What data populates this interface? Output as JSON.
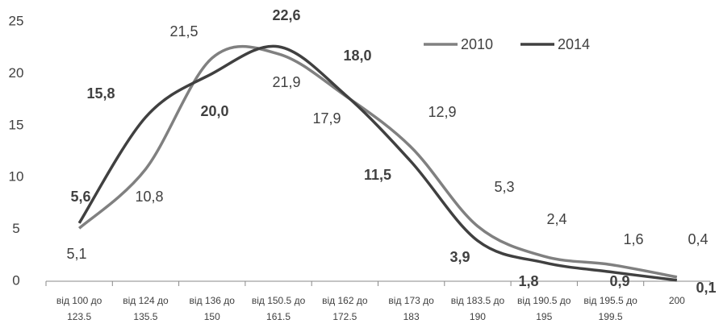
{
  "chart_data": {
    "type": "line",
    "categories": [
      "від 100 до 123.5",
      "від 124 до 135.5",
      "від 136 до 150",
      "від 150.5 до 161.5",
      "від 162 до 172.5",
      "від 173 до 183",
      "від 183.5 до 190",
      "від 190.5 до 195",
      "від 195.5 до 199.5",
      "200"
    ],
    "series": [
      {
        "name": "2010",
        "color": "#808080",
        "values": [
          5.1,
          10.8,
          21.5,
          21.9,
          17.9,
          12.9,
          5.3,
          2.4,
          1.6,
          0.4
        ],
        "value_labels": [
          "5,1",
          "10,8",
          "21,5",
          "21,9",
          "17,9",
          "12,9",
          "5,3",
          "2,4",
          "1,6",
          "0,4"
        ]
      },
      {
        "name": "2014",
        "color": "#404040",
        "values": [
          5.6,
          15.8,
          20.0,
          22.6,
          18.0,
          11.5,
          3.9,
          1.8,
          0.9,
          0.1
        ],
        "value_labels": [
          "5,6",
          "15,8",
          "20,0",
          "22,6",
          "18,0",
          "11,5",
          "3,9",
          "1,8",
          "0,9",
          "0,1"
        ]
      }
    ],
    "ylim": [
      0,
      25
    ],
    "yticks": [
      0,
      5,
      10,
      15,
      20,
      25
    ],
    "grid": false,
    "legend": "top-right"
  }
}
